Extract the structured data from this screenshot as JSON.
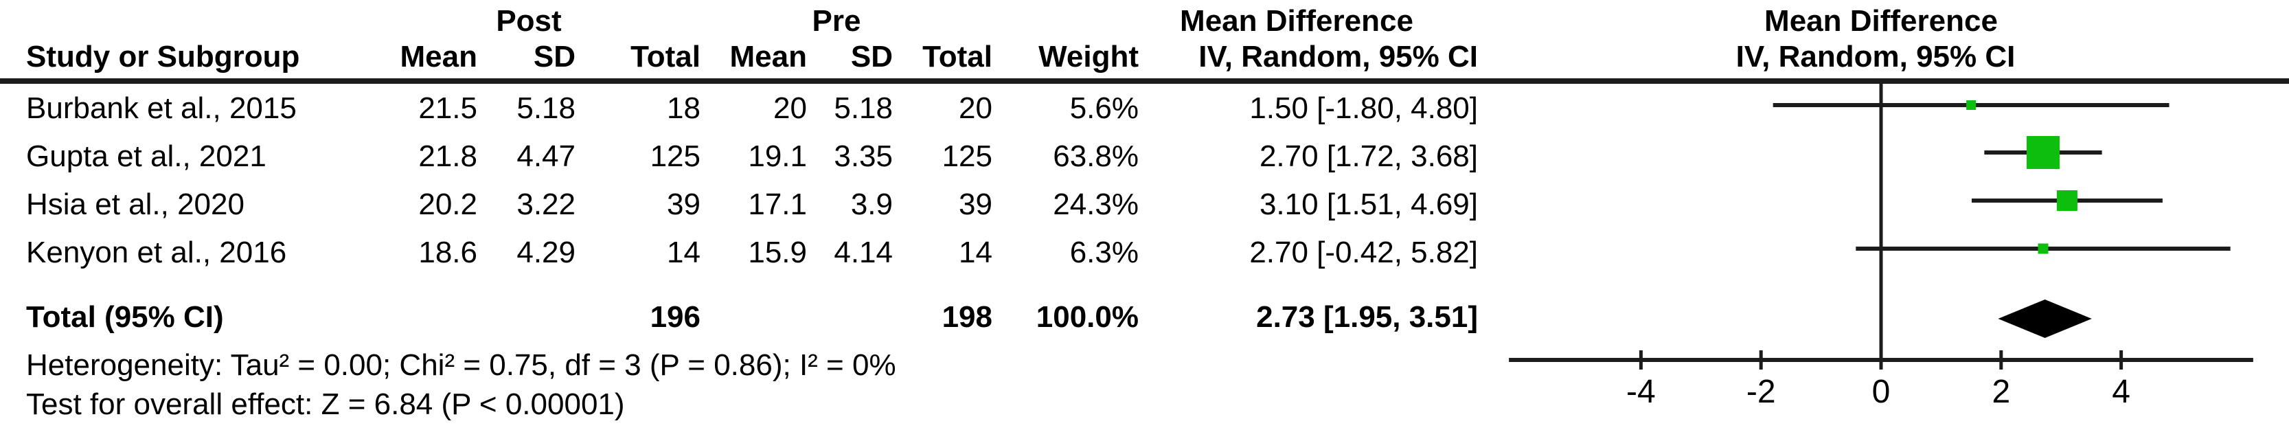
{
  "header": {
    "group_post": "Post",
    "group_pre": "Pre",
    "md_text_col": "Mean Difference",
    "md_plot_col": "Mean Difference",
    "study": "Study or Subgroup",
    "mean": "Mean",
    "sd": "SD",
    "total": "Total",
    "weight": "Weight",
    "iv_random": "IV, Random, 95% CI",
    "iv_random_plot": "IV, Random, 95% CI"
  },
  "table": {
    "studies": [
      {
        "name": "Burbank et al., 2015",
        "post_mean": "21.5",
        "post_sd": "5.18",
        "post_total": "18",
        "pre_mean": "20",
        "pre_sd": "5.18",
        "pre_total": "20",
        "weight": "5.6%",
        "ci": "1.50 [-1.80, 4.80]"
      },
      {
        "name": "Gupta et al., 2021",
        "post_mean": "21.8",
        "post_sd": "4.47",
        "post_total": "125",
        "pre_mean": "19.1",
        "pre_sd": "3.35",
        "pre_total": "125",
        "weight": "63.8%",
        "ci": "2.70 [1.72, 3.68]"
      },
      {
        "name": "Hsia et al., 2020",
        "post_mean": "20.2",
        "post_sd": "3.22",
        "post_total": "39",
        "pre_mean": "17.1",
        "pre_sd": "3.9",
        "pre_total": "39",
        "weight": "24.3%",
        "ci": "3.10 [1.51, 4.69]"
      },
      {
        "name": "Kenyon et al., 2016",
        "post_mean": "18.6",
        "post_sd": "4.29",
        "post_total": "14",
        "pre_mean": "15.9",
        "pre_sd": "4.14",
        "pre_total": "14",
        "weight": "6.3%",
        "ci": "2.70 [-0.42, 5.82]"
      }
    ],
    "total_row": {
      "label": "Total (95% CI)",
      "post_total": "196",
      "pre_total": "198",
      "weight": "100.0%",
      "ci": "2.73 [1.95, 3.51]"
    },
    "heterogeneity": "Heterogeneity: Tau² = 0.00; Chi² = 0.75, df = 3 (P = 0.86); I² = 0%",
    "overall_effect": "Test for overall effect: Z = 6.84 (P < 0.00001)"
  },
  "chart_data": {
    "type": "scatter",
    "subtype": "forest_plot",
    "title": "Mean Difference",
    "effect_label": "IV, Random, 95% CI",
    "x_ticks": [
      -4,
      -2,
      0,
      2,
      4
    ],
    "x_tick_labels": [
      "-4",
      "-2",
      "0",
      "2",
      "4"
    ],
    "xlim": [
      -6.2,
      6.2
    ],
    "null_line": 0,
    "marker_color": "#0dbe0d",
    "line_color": "#1c1c1c",
    "studies": [
      {
        "name": "Burbank et al., 2015",
        "md": 1.5,
        "ci_low": -1.8,
        "ci_high": 4.8,
        "weight_pct": 5.6
      },
      {
        "name": "Gupta et al., 2021",
        "md": 2.7,
        "ci_low": 1.72,
        "ci_high": 3.68,
        "weight_pct": 63.8
      },
      {
        "name": "Hsia et al., 2020",
        "md": 3.1,
        "ci_low": 1.51,
        "ci_high": 4.69,
        "weight_pct": 24.3
      },
      {
        "name": "Kenyon et al., 2016",
        "md": 2.7,
        "ci_low": -0.42,
        "ci_high": 5.82,
        "weight_pct": 6.3
      }
    ],
    "total": {
      "md": 2.73,
      "ci_low": 1.95,
      "ci_high": 3.51,
      "weight_pct": 100.0
    }
  }
}
